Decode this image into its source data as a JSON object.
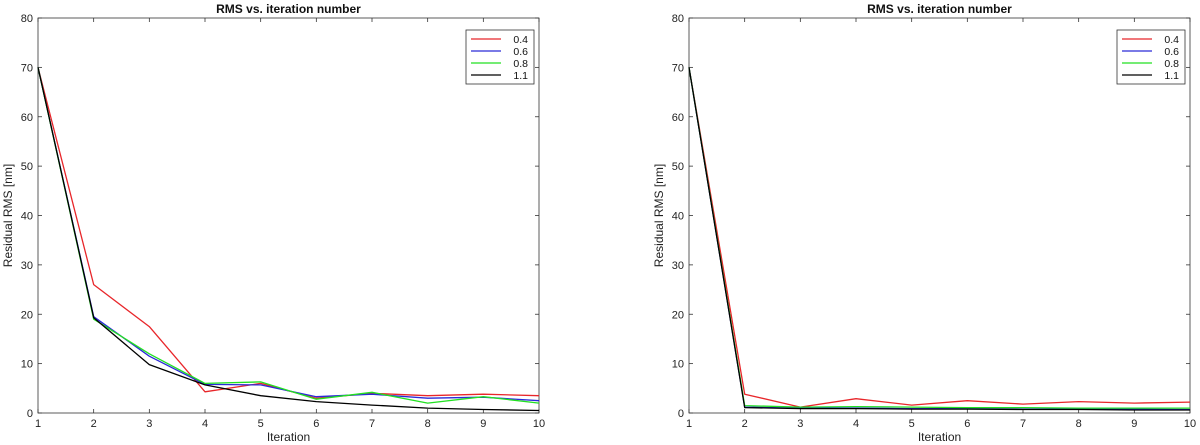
{
  "chart_data": [
    {
      "type": "line",
      "title": "RMS vs. iteration number",
      "xlabel": "Iteration",
      "ylabel": "Residual RMS [nm]",
      "xlim": [
        1,
        10
      ],
      "ylim": [
        0,
        80
      ],
      "xticks": [
        "1",
        "2",
        "3",
        "4",
        "5",
        "6",
        "7",
        "8",
        "9",
        "10"
      ],
      "yticks": [
        "0",
        "10",
        "20",
        "30",
        "40",
        "50",
        "60",
        "70",
        "80"
      ],
      "grid": false,
      "legend": "top-right",
      "x": [
        1,
        2,
        3,
        4,
        5,
        6,
        7,
        8,
        9,
        10
      ],
      "series": [
        {
          "name": "0.4",
          "color": "#e8262a",
          "values": [
            70,
            26,
            17.5,
            4.3,
            6,
            3,
            4,
            3.5,
            3.8,
            3.5
          ]
        },
        {
          "name": "0.6",
          "color": "#2a2ad8",
          "values": [
            70,
            19.5,
            11.5,
            5.8,
            5.7,
            3.3,
            3.8,
            3,
            3.2,
            2.5
          ]
        },
        {
          "name": "0.8",
          "color": "#22e022",
          "values": [
            70,
            19,
            12,
            6,
            6.3,
            2.8,
            4.2,
            2,
            3.3,
            2
          ]
        },
        {
          "name": "1.1",
          "color": "#000000",
          "values": [
            70,
            19.3,
            9.8,
            5.7,
            3.5,
            2.3,
            1.6,
            1,
            0.7,
            0.5
          ]
        }
      ]
    },
    {
      "type": "line",
      "title": "RMS vs. iteration number",
      "xlabel": "Iteration",
      "ylabel": "Residual RMS [nm]",
      "xlim": [
        1,
        10
      ],
      "ylim": [
        0,
        80
      ],
      "xticks": [
        "1",
        "2",
        "3",
        "4",
        "5",
        "6",
        "7",
        "8",
        "9",
        "10"
      ],
      "yticks": [
        "0",
        "10",
        "20",
        "30",
        "40",
        "50",
        "60",
        "70",
        "80"
      ],
      "grid": false,
      "legend": "top-right",
      "x": [
        1,
        2,
        3,
        4,
        5,
        6,
        7,
        8,
        9,
        10
      ],
      "series": [
        {
          "name": "0.4",
          "color": "#e8262a",
          "values": [
            70,
            3.8,
            1.2,
            2.9,
            1.6,
            2.5,
            1.8,
            2.3,
            2,
            2.2
          ]
        },
        {
          "name": "0.6",
          "color": "#2a2ad8",
          "values": [
            70,
            1.2,
            1,
            1,
            0.9,
            0.9,
            0.8,
            0.8,
            0.8,
            0.7
          ]
        },
        {
          "name": "0.8",
          "color": "#22e022",
          "values": [
            70,
            1.5,
            1.2,
            1.3,
            1.2,
            1.1,
            1.1,
            1,
            1,
            1
          ]
        },
        {
          "name": "1.1",
          "color": "#000000",
          "values": [
            70,
            1.1,
            0.9,
            0.9,
            0.8,
            0.8,
            0.7,
            0.7,
            0.6,
            0.6
          ]
        }
      ]
    }
  ]
}
